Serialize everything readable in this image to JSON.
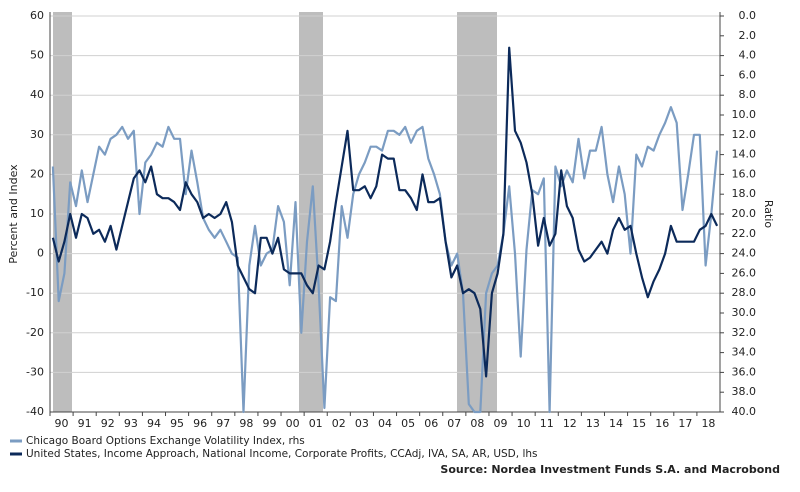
{
  "chart_data": {
    "type": "line",
    "y_label": "Percent and Index",
    "y2_label": "Ratio",
    "source": "Source: Nordea Investment Funds S.A. and Macrobond",
    "categories": [
      null,
      "90",
      null,
      null,
      null,
      "91",
      null,
      null,
      null,
      "92",
      null,
      null,
      null,
      "93",
      null,
      null,
      null,
      "94",
      null,
      null,
      null,
      "95",
      null,
      null,
      null,
      "96",
      null,
      null,
      null,
      "97",
      null,
      null,
      null,
      "98",
      null,
      null,
      null,
      "99",
      null,
      null,
      null,
      "00",
      null,
      null,
      null,
      "01",
      null,
      null,
      null,
      "02",
      null,
      null,
      null,
      "03",
      null,
      null,
      null,
      "04",
      null,
      null,
      null,
      "05",
      null,
      null,
      null,
      "06",
      null,
      null,
      null,
      "07",
      null,
      null,
      null,
      "08",
      null,
      null,
      null,
      "09",
      null,
      null,
      null,
      "10",
      null,
      null,
      null,
      "11",
      null,
      null,
      null,
      "12",
      null,
      null,
      null,
      "13",
      null,
      null,
      null,
      "14",
      null,
      null,
      null,
      "15",
      null,
      null,
      null,
      "16",
      null,
      null,
      null,
      "17",
      null,
      null,
      null,
      "18",
      null,
      null
    ],
    "ylim": [
      -40,
      60
    ],
    "yticks": [
      -40,
      -30,
      -20,
      -10,
      0,
      10,
      20,
      30,
      40,
      50,
      60
    ],
    "y2lim": [
      40,
      0
    ],
    "y2ticks": [
      {
        "value": 0,
        "label": "0.0"
      },
      {
        "value": 2,
        "label": "2.0"
      },
      {
        "value": 4,
        "label": "4.0"
      },
      {
        "value": 6,
        "label": "6.0"
      },
      {
        "value": 8,
        "label": "8.0"
      },
      {
        "value": 10,
        "label": "10.0"
      },
      {
        "value": 12,
        "label": "12.0"
      },
      {
        "value": 14,
        "label": "14.0"
      },
      {
        "value": 16,
        "label": "16.0"
      },
      {
        "value": 18,
        "label": "18.0"
      },
      {
        "value": 20,
        "label": "20.0"
      },
      {
        "value": 22,
        "label": "22.0"
      },
      {
        "value": 24,
        "label": "24.0"
      },
      {
        "value": 26,
        "label": "26.0"
      },
      {
        "value": 28,
        "label": "28.0"
      },
      {
        "value": 30,
        "label": "30.0"
      },
      {
        "value": 32,
        "label": "32.0"
      },
      {
        "value": 34,
        "label": "34.0"
      },
      {
        "value": 36,
        "label": "36.0"
      },
      {
        "value": 38,
        "label": "38.0"
      },
      {
        "value": 40,
        "label": "40.0"
      }
    ],
    "grid": true,
    "series": [
      {
        "name": "Chicago Board Options Exchange Volatility Index, rhs",
        "color": "#7b9cc2",
        "axis": "y2",
        "values": [
          15.2,
          28.8,
          26,
          16.8,
          19.2,
          15.6,
          18.8,
          16,
          13.2,
          14,
          12.4,
          12,
          11.2,
          12.4,
          11.6,
          20,
          14.8,
          14,
          12.8,
          13.2,
          11.2,
          12.4,
          12.4,
          18,
          13.6,
          16.8,
          20.4,
          21.6,
          22.4,
          21.6,
          22.8,
          24,
          24.4,
          40,
          25.2,
          21.2,
          25.2,
          24,
          23.6,
          19.2,
          20.8,
          27.2,
          18.8,
          32,
          22.8,
          17.2,
          27.2,
          39.6,
          28.4,
          28.8,
          19.2,
          22.4,
          18,
          16,
          14.8,
          13.2,
          13.2,
          13.6,
          11.6,
          11.6,
          12,
          11.2,
          12.8,
          11.6,
          11.2,
          14.4,
          16,
          18,
          22.8,
          25.2,
          24,
          28,
          39.2,
          40,
          40,
          28,
          26,
          25.2,
          22,
          17.2,
          24,
          34.4,
          23.6,
          17.6,
          18,
          16.4,
          40,
          15.2,
          17.2,
          15.6,
          16.8,
          12.4,
          16.4,
          13.6,
          13.6,
          11.2,
          16,
          18.8,
          15.2,
          18,
          24,
          14,
          15.2,
          13.2,
          13.6,
          12,
          10.8,
          9.2,
          10.8,
          19.6,
          16,
          12,
          12,
          25.2,
          20,
          13.6
        ]
      },
      {
        "name": "United States, Income Approach, National Income, Corporate Profits, CCAdj, IVA, SA, AR, USD, lhs",
        "color": "#0c2a5a",
        "values": [
          4,
          -2,
          3,
          10,
          4,
          10,
          9,
          5,
          6,
          3,
          7,
          1,
          7,
          13,
          19,
          21,
          18,
          22,
          15,
          14,
          14,
          13,
          11,
          18,
          15,
          13,
          9,
          10,
          9,
          10,
          13,
          8,
          -3,
          -6,
          -9,
          -10,
          4,
          4,
          0,
          4,
          -4,
          -5,
          -5,
          -5,
          -8,
          -10,
          -3,
          -4,
          3,
          13,
          22,
          31,
          16,
          16,
          17,
          14,
          17,
          25,
          24,
          24,
          16,
          16,
          14,
          11,
          20,
          13,
          13,
          14,
          3,
          -6,
          -3,
          -10,
          -9,
          -10,
          -14,
          -31,
          -10,
          -5,
          5,
          52,
          31,
          28,
          23,
          15,
          2,
          9,
          2,
          5,
          21,
          12,
          9,
          1,
          -2,
          -1,
          1,
          3,
          0,
          6,
          9,
          6,
          7,
          0,
          -6,
          -11,
          -7,
          -4,
          0,
          7,
          3,
          3,
          3,
          3,
          6,
          7,
          10,
          7
        ]
      }
    ]
  }
}
